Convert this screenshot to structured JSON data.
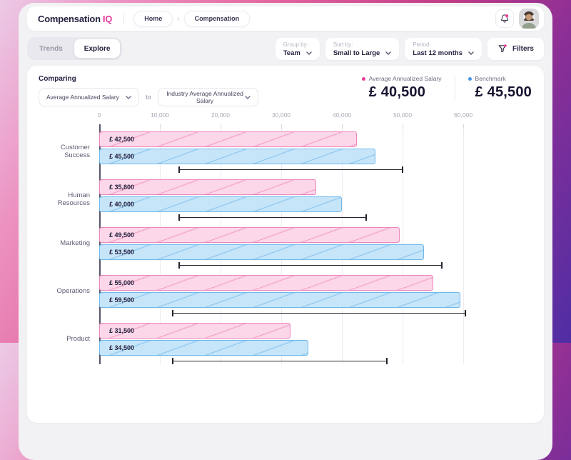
{
  "header": {
    "logo_text": "Compensation",
    "logo_accent": "IQ",
    "breadcrumbs": [
      "Home",
      "Compensation"
    ]
  },
  "toolbar": {
    "tabs": [
      {
        "label": "Trends",
        "active": false
      },
      {
        "label": "Explore",
        "active": true
      }
    ],
    "dropdowns": [
      {
        "label": "Group by:",
        "value": "Team"
      },
      {
        "label": "Sort by:",
        "value": "Small to Large"
      },
      {
        "label": "Period:",
        "value": "Last 12 months"
      }
    ],
    "filters_label": "Filters"
  },
  "compare": {
    "title": "Comparing",
    "select_left": "Average Annualized Salary",
    "to_label": "to",
    "select_right": "Industry Average Annualized Salary"
  },
  "legend": {
    "items": [
      {
        "label": "Average Annualized Salary",
        "value": "£ 40,500",
        "color": "#ee3d9b"
      },
      {
        "label": "Benchmark",
        "value": "£ 45,500",
        "color": "#4596e8"
      }
    ]
  },
  "colors": {
    "accent_pink": "#e23a9d",
    "bar_pink_fill": "#fbd7e9",
    "bar_pink_stroke": "#ef86ba",
    "bar_blue_fill": "#c7e5f9",
    "bar_blue_stroke": "#6fb8ec"
  },
  "chart_data": {
    "type": "bar",
    "orientation": "horizontal",
    "title": "",
    "xlabel": "",
    "ylabel": "",
    "grid": true,
    "xmax": 60000,
    "categories": [
      "Customer Success",
      "Human Resources",
      "Marketing",
      "Operations",
      "Product"
    ],
    "series": [
      {
        "name": "Average Annualized Salary",
        "values": [
          42500,
          35800,
          49500,
          55000,
          31500
        ],
        "labels": [
          "£ 42,500",
          "£ 35,800",
          "£ 49,500",
          "£ 55,000",
          "£ 31,500"
        ]
      },
      {
        "name": "Benchmark",
        "values": [
          45500,
          40000,
          53500,
          59500,
          34500
        ],
        "labels": [
          "£ 45,500",
          "£ 40,000",
          "£ 53,500",
          "£ 59,500",
          "£ 34,500"
        ]
      }
    ],
    "ranges": [
      [
        13000,
        50000
      ],
      [
        13000,
        44000
      ],
      [
        13000,
        56500
      ],
      [
        12000,
        60500
      ],
      [
        12000,
        47500
      ]
    ],
    "x_ticks": [
      {
        "value": 0,
        "label": "0"
      },
      {
        "value": 10000,
        "label": "10,000"
      },
      {
        "value": 20000,
        "label": "20,000"
      },
      {
        "value": 30000,
        "label": "30,000"
      },
      {
        "value": 40000,
        "label": "40,000"
      },
      {
        "value": 50000,
        "label": "50,000"
      },
      {
        "value": 60000,
        "label": "60,000"
      }
    ]
  }
}
